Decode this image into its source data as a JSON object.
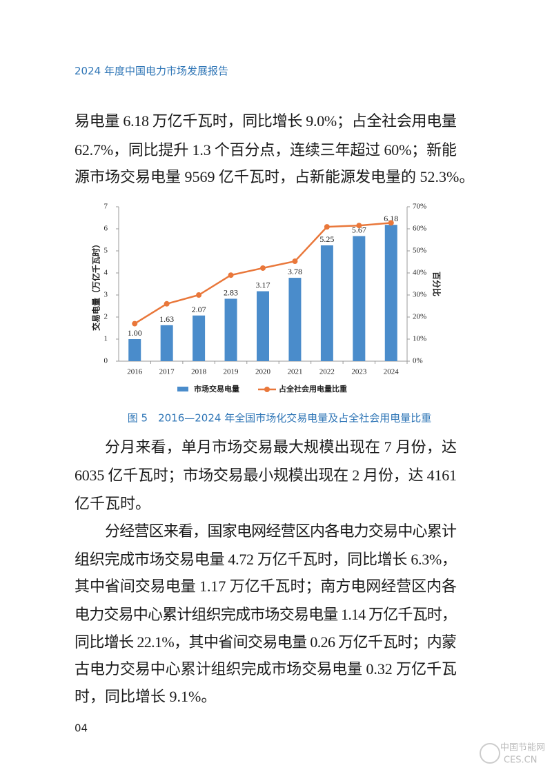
{
  "header": {
    "title": "2024 年度中国电力市场发展报告"
  },
  "paragraphs": [
    [
      "易电量 6.18 万亿千瓦时，同比增长 9.0%；占全社会用电量",
      "62.7%，同比提升 1.3 个百分点，连续三年超过 60%；新能",
      "源市场交易电量 9569 亿千瓦时，占新能源发电量的 52.3%。"
    ],
    [
      "分月来看，单月市场交易最大规模出现在 7 月份，达",
      "6035 亿千瓦时；市场交易最小规模出现在 2 月份，达 4161",
      "亿千瓦时。"
    ],
    [
      "分经营区来看，国家电网经营区内各电力交易中心累计",
      "组织完成市场交易电量 4.72 万亿千瓦时，同比增长 6.3%，",
      "其中省间交易电量 1.17 万亿千瓦时；南方电网经营区内各",
      "电力交易中心累计组织完成市场交易电量 1.14 万亿千瓦时，",
      "同比增长 22.1%，其中省间交易电量 0.26 万亿千瓦时；内蒙",
      "古电力交易中心累计组织完成市场交易电量 0.32 万亿千瓦",
      "时，同比增长 9.1%。"
    ]
  ],
  "chart_data": {
    "type": "bar-line",
    "y_label": "交易电量（万亿千瓦时）",
    "y2_label": "百分比",
    "categories": [
      "2016",
      "2017",
      "2018",
      "2019",
      "2020",
      "2021",
      "2022",
      "2023",
      "2024"
    ],
    "series": [
      {
        "name": "市场交易电量",
        "color": "#4a8ccb",
        "values": [
          1.0,
          1.63,
          2.07,
          2.83,
          3.17,
          3.78,
          5.25,
          5.67,
          6.18
        ],
        "value_labels": [
          "1.00",
          "1.63",
          "2.07",
          "2.83",
          "3.17",
          "3.78",
          "5.25",
          "5.67",
          "6.18"
        ]
      },
      {
        "name": "占全社会用电量比重",
        "color": "#e9773a",
        "axis": "y2",
        "values": [
          17,
          26,
          30,
          39,
          42.2,
          45.3,
          60.9,
          61.5,
          62.7
        ]
      }
    ],
    "ylim": [
      0,
      7
    ],
    "yticks": [
      0,
      1,
      2,
      3,
      4,
      5,
      6,
      7
    ],
    "y2lim": [
      0,
      70
    ],
    "y2ticks": [
      {
        "value": 0,
        "label": "0%"
      },
      {
        "value": 10,
        "label": "10%"
      },
      {
        "value": 20,
        "label": "20%"
      },
      {
        "value": 30,
        "label": "30%"
      },
      {
        "value": 40,
        "label": "40%"
      },
      {
        "value": 50,
        "label": "50%"
      },
      {
        "value": 60,
        "label": "60%"
      },
      {
        "value": 70,
        "label": "70%"
      }
    ],
    "grid": false,
    "legend": "bottom"
  },
  "caption": "图 5　2016—2024 年全国市场化交易电量及占全社会用电量比重",
  "page_number": "04",
  "watermark": {
    "name": "中国节能网",
    "url": "CES.CN"
  }
}
